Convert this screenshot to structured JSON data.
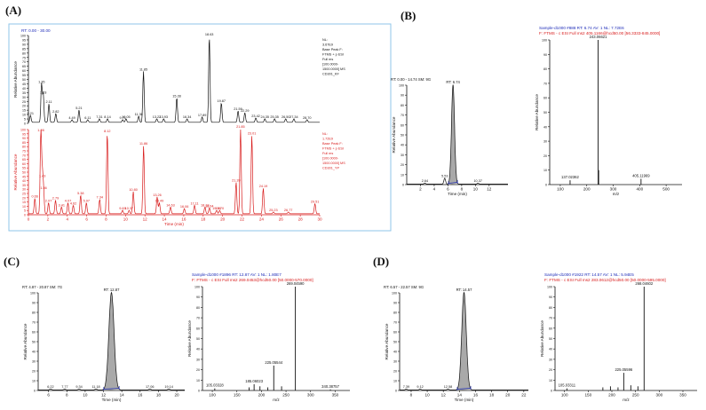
{
  "panel_labels": [
    "(A)",
    "(B)",
    "(C)",
    "(D)"
  ],
  "colors": {
    "black": "#111111",
    "red": "#d81b1b",
    "blue": "#1d2bb8",
    "frame": "#8fc6ea",
    "fill": "#a9a9a9"
  },
  "chart_data": [
    {
      "id": "A-top",
      "type": "line",
      "header": "RT: 0.00 - 30.00",
      "info": [
        "NL:",
        "3.67E9",
        "Base Peak F:",
        "FTMS + p ESI",
        "Full ms",
        "[100.0000-",
        "1500.0000]  MS",
        "CD301_KF"
      ],
      "ylabel": "Relative Abundance",
      "xlim": [
        0,
        30
      ],
      "ylim": [
        0,
        100
      ],
      "y_ticks": [
        0,
        5,
        10,
        15,
        20,
        25,
        30,
        35,
        40,
        45,
        50,
        55,
        60,
        65,
        70,
        75,
        80,
        85,
        90,
        95,
        100
      ],
      "peaks": [
        {
          "x": 0.21,
          "y": 8,
          "label": "0.21"
        },
        {
          "x": 1.35,
          "y": 44,
          "label": "1.35"
        },
        {
          "x": 1.53,
          "y": 32,
          "label": "1.53"
        },
        {
          "x": 2.11,
          "y": 21,
          "label": "2.11"
        },
        {
          "x": 2.82,
          "y": 10,
          "label": "2.82"
        },
        {
          "x": 4.49,
          "y": 3,
          "label": "4.49"
        },
        {
          "x": 5.21,
          "y": 14,
          "label": "5.21"
        },
        {
          "x": 6.11,
          "y": 3,
          "label": "6.11"
        },
        {
          "x": 7.31,
          "y": 4,
          "label": "7.31"
        },
        {
          "x": 8.14,
          "y": 4,
          "label": "8.14"
        },
        {
          "x": 9.71,
          "y": 3,
          "label": "9.71"
        },
        {
          "x": 10.05,
          "y": 4,
          "label": "10.05"
        },
        {
          "x": 11.36,
          "y": 7,
          "label": "11.36"
        },
        {
          "x": 11.85,
          "y": 58,
          "label": "11.85"
        },
        {
          "x": 13.22,
          "y": 4,
          "label": "13.22"
        },
        {
          "x": 13.93,
          "y": 4,
          "label": "13.93"
        },
        {
          "x": 15.28,
          "y": 28,
          "label": "15.28"
        },
        {
          "x": 16.34,
          "y": 4,
          "label": "16.34"
        },
        {
          "x": 17.89,
          "y": 6,
          "label": "17.89"
        },
        {
          "x": 18.63,
          "y": 98,
          "label": "18.63"
        },
        {
          "x": 19.87,
          "y": 22,
          "label": "19.87"
        },
        {
          "x": 21.59,
          "y": 13,
          "label": "21.59"
        },
        {
          "x": 22.29,
          "y": 11,
          "label": "22.29"
        },
        {
          "x": 23.42,
          "y": 5,
          "label": "23.42"
        },
        {
          "x": 24.35,
          "y": 4,
          "label": "24.35"
        },
        {
          "x": 25.35,
          "y": 4,
          "label": "25.35"
        },
        {
          "x": 26.5,
          "y": 4,
          "label": "26.50"
        },
        {
          "x": 27.34,
          "y": 4,
          "label": "27.34"
        },
        {
          "x": 28.7,
          "y": 3,
          "label": "28.70"
        }
      ]
    },
    {
      "id": "A-bottom",
      "type": "line",
      "info": [
        "NL:",
        "1.72E9",
        "Base Peak F:",
        "FTMS + p ESI",
        "Full ms",
        "[100.0000-",
        "1500.0000]  MS",
        "CD301_YP"
      ],
      "ylabel": "Relative Abundance",
      "xlabel": "Time (min)",
      "xlim": [
        0,
        30
      ],
      "ylim": [
        0,
        100
      ],
      "x_ticks": [
        0,
        2,
        4,
        6,
        8,
        10,
        12,
        14,
        16,
        18,
        20,
        22,
        24,
        26,
        28,
        30
      ],
      "y_ticks": [
        0,
        5,
        10,
        15,
        20,
        25,
        30,
        35,
        40,
        45,
        50,
        55,
        60,
        65,
        70,
        75,
        80,
        85,
        90,
        95,
        100
      ],
      "peaks": [
        {
          "x": 0.66,
          "y": 18,
          "label": "0.66"
        },
        {
          "x": 1.28,
          "y": 96,
          "label": "1.28"
        },
        {
          "x": 1.43,
          "y": 42,
          "label": "1.43"
        },
        {
          "x": 1.56,
          "y": 28,
          "label": "1.56"
        },
        {
          "x": 2.07,
          "y": 13,
          "label": "2.07"
        },
        {
          "x": 2.79,
          "y": 16,
          "label": "2.79"
        },
        {
          "x": 3.41,
          "y": 8,
          "label": "3.41"
        },
        {
          "x": 4.07,
          "y": 13,
          "label": "4.07"
        },
        {
          "x": 4.62,
          "y": 10,
          "label": "4.62"
        },
        {
          "x": 5.38,
          "y": 22,
          "label": "5.38"
        },
        {
          "x": 5.97,
          "y": 13,
          "label": "5.97"
        },
        {
          "x": 7.34,
          "y": 17,
          "label": "7.34"
        },
        {
          "x": 8.12,
          "y": 95,
          "label": "8.12"
        },
        {
          "x": 9.69,
          "y": 4,
          "label": "9.69"
        },
        {
          "x": 10.37,
          "y": 4,
          "label": "10.37"
        },
        {
          "x": 10.8,
          "y": 26,
          "label": "10.80"
        },
        {
          "x": 11.86,
          "y": 80,
          "label": "11.86"
        },
        {
          "x": 13.26,
          "y": 20,
          "label": "13.26"
        },
        {
          "x": 13.49,
          "y": 13,
          "label": "13.49"
        },
        {
          "x": 14.63,
          "y": 8,
          "label": "14.63"
        },
        {
          "x": 16.06,
          "y": 6,
          "label": "16.06"
        },
        {
          "x": 17.11,
          "y": 10,
          "label": "17.11"
        },
        {
          "x": 18.18,
          "y": 8,
          "label": "18.18"
        },
        {
          "x": 18.64,
          "y": 7,
          "label": "18.64"
        },
        {
          "x": 19.38,
          "y": 4,
          "label": "19.38"
        },
        {
          "x": 19.7,
          "y": 4,
          "label": "19.70"
        },
        {
          "x": 21.39,
          "y": 37,
          "label": "21.39"
        },
        {
          "x": 21.85,
          "y": 100,
          "label": "21.85"
        },
        {
          "x": 23.01,
          "y": 92,
          "label": "23.01"
        },
        {
          "x": 24.19,
          "y": 30,
          "label": "24.19"
        },
        {
          "x": 25.23,
          "y": 2,
          "label": "25.23"
        },
        {
          "x": 26.77,
          "y": 2,
          "label": "26.77"
        },
        {
          "x": 29.51,
          "y": 12,
          "label": "29.51"
        }
      ]
    },
    {
      "id": "B-chrom",
      "type": "line",
      "header": "RT: 0.00 - 14.74   SM: 9G",
      "apex_label": "RT: 6.74",
      "ylabel": "Relative Abundance",
      "xlabel": "Time (min)",
      "xlim": [
        0,
        14.74
      ],
      "ylim": [
        0,
        100
      ],
      "x_ticks": [
        2,
        4,
        6,
        8,
        10,
        12
      ],
      "y_ticks": [
        0,
        10,
        20,
        30,
        40,
        50,
        60,
        70,
        80,
        90,
        100
      ],
      "peak": {
        "rt": 6.74,
        "height": 100,
        "width": 0.22
      },
      "minor": [
        {
          "x": 2.64,
          "y": 1,
          "label": "2.64"
        },
        {
          "x": 5.53,
          "y": 6,
          "label": "5.53"
        },
        {
          "x": 10.37,
          "y": 1,
          "label": "10.37"
        }
      ]
    },
    {
      "id": "B-ms2",
      "type": "bar",
      "header1": "Sample-d1000 #888   RT: 6.74   AV: 1   NL: 7.72E6",
      "header2": "F: FTMS - c ESI Full ms2 405.1166@hcd50.00 [56.3333-845.0000]",
      "ylabel": "Relative Abundance",
      "xlabel": "m/z",
      "xlim": [
        60,
        560
      ],
      "ylim": [
        0,
        100
      ],
      "x_ticks": [
        100,
        200,
        300,
        400,
        500
      ],
      "y_ticks": [
        0,
        10,
        20,
        30,
        40,
        50,
        60,
        70,
        80,
        90,
        100
      ],
      "bars": [
        {
          "mz": 137.02362,
          "y": 3,
          "label": "137.02362"
        },
        {
          "mz": 243.06621,
          "y": 100,
          "label": "243.06621"
        },
        {
          "mz": 245.0,
          "y": 10,
          "label": ""
        },
        {
          "mz": 405.11969,
          "y": 4,
          "label": "405.11969"
        }
      ]
    },
    {
      "id": "C-chrom",
      "type": "line",
      "header": "RT: 4.87 - 20.87   SM: 7G",
      "apex_label": "RT: 12.87",
      "ylabel": "Relative Abundance",
      "xlabel": "Time (min)",
      "xlim": [
        4.87,
        20.87
      ],
      "ylim": [
        0,
        100
      ],
      "x_ticks": [
        6,
        8,
        10,
        12,
        14,
        16,
        18,
        20
      ],
      "y_ticks": [
        0,
        10,
        20,
        30,
        40,
        50,
        60,
        70,
        80,
        90,
        100
      ],
      "peak": {
        "rt": 12.87,
        "height": 100,
        "width": 0.28
      },
      "minor": [
        {
          "x": 6.22,
          "y": 1,
          "label": "6.22"
        },
        {
          "x": 7.77,
          "y": 1,
          "label": "7.77"
        },
        {
          "x": 9.34,
          "y": 1,
          "label": "9.34"
        },
        {
          "x": 11.18,
          "y": 1,
          "label": "11.18"
        },
        {
          "x": 17.06,
          "y": 1,
          "label": "17.06"
        },
        {
          "x": 19.14,
          "y": 1,
          "label": "19.14"
        }
      ]
    },
    {
      "id": "C-ms2",
      "type": "bar",
      "header1": "Sample-d1000 #1896   RT: 12.87   AV: 1   NL: 1.80E7",
      "header2": "F: FTMS - c ESI Full ms2 269.0453@hcd50.00 [50.0000-570.0000]",
      "ylabel": "Relative Abundance",
      "xlabel": "m/z",
      "xlim": [
        80,
        380
      ],
      "ylim": [
        0,
        100
      ],
      "x_ticks": [
        100,
        150,
        200,
        250,
        300,
        350
      ],
      "y_ticks": [
        0,
        10,
        20,
        30,
        40,
        50,
        60,
        70,
        80,
        90,
        100
      ],
      "bars": [
        {
          "mz": 105.03328,
          "y": 2,
          "label": "105.03328"
        },
        {
          "mz": 175.0,
          "y": 3,
          "label": ""
        },
        {
          "mz": 185.06023,
          "y": 6,
          "label": "185.06023"
        },
        {
          "mz": 197.0,
          "y": 4,
          "label": ""
        },
        {
          "mz": 213.0,
          "y": 3,
          "label": ""
        },
        {
          "mz": 225.05544,
          "y": 24,
          "label": "225.05544"
        },
        {
          "mz": 241.0,
          "y": 4,
          "label": ""
        },
        {
          "mz": 269.0459,
          "y": 100,
          "label": "269.04590"
        },
        {
          "mz": 340.38757,
          "y": 1,
          "label": "340.38757"
        }
      ]
    },
    {
      "id": "D-chrom",
      "type": "line",
      "header": "RT: 6.57 - 22.57   SM: 9G",
      "apex_label": "RT: 14.57",
      "ylabel": "Relative Abundance",
      "xlabel": "Time (min)",
      "xlim": [
        6.57,
        22.57
      ],
      "ylim": [
        0,
        100
      ],
      "x_ticks": [
        8,
        10,
        12,
        14,
        16,
        18,
        20,
        22
      ],
      "y_ticks": [
        0,
        10,
        20,
        30,
        40,
        50,
        60,
        70,
        80,
        90,
        100
      ],
      "peak": {
        "rt": 14.57,
        "height": 100,
        "width": 0.28
      },
      "minor": [
        {
          "x": 7.39,
          "y": 1,
          "label": "7.39"
        },
        {
          "x": 9.12,
          "y": 1,
          "label": "9.12"
        },
        {
          "x": 12.58,
          "y": 1,
          "label": "12.58"
        }
      ]
    },
    {
      "id": "D-ms2",
      "type": "bar",
      "header1": "Sample-d1000 #1922   RT: 14.57   AV: 1   NL: 5.94E5",
      "header2": "F: FTMS - c ESI Full ms2 283.0612@hcd50.00 [50.0000-595.0000]",
      "ylabel": "Relative Abundance",
      "xlabel": "m/z",
      "xlim": [
        80,
        380
      ],
      "ylim": [
        0,
        100
      ],
      "x_ticks": [
        100,
        150,
        200,
        250,
        300,
        350
      ],
      "y_ticks": [
        0,
        10,
        20,
        30,
        40,
        50,
        60,
        70,
        80,
        90,
        100
      ],
      "bars": [
        {
          "mz": 105.03311,
          "y": 2,
          "label": "105.03311"
        },
        {
          "mz": 181.0,
          "y": 3,
          "label": ""
        },
        {
          "mz": 197.0,
          "y": 4,
          "label": ""
        },
        {
          "mz": 213.0,
          "y": 3,
          "label": ""
        },
        {
          "mz": 225.05596,
          "y": 17,
          "label": "225.05596"
        },
        {
          "mz": 240.0,
          "y": 5,
          "label": ""
        },
        {
          "mz": 255.0,
          "y": 4,
          "label": ""
        },
        {
          "mz": 268.04602,
          "y": 100,
          "label": "268.04602"
        }
      ]
    }
  ]
}
